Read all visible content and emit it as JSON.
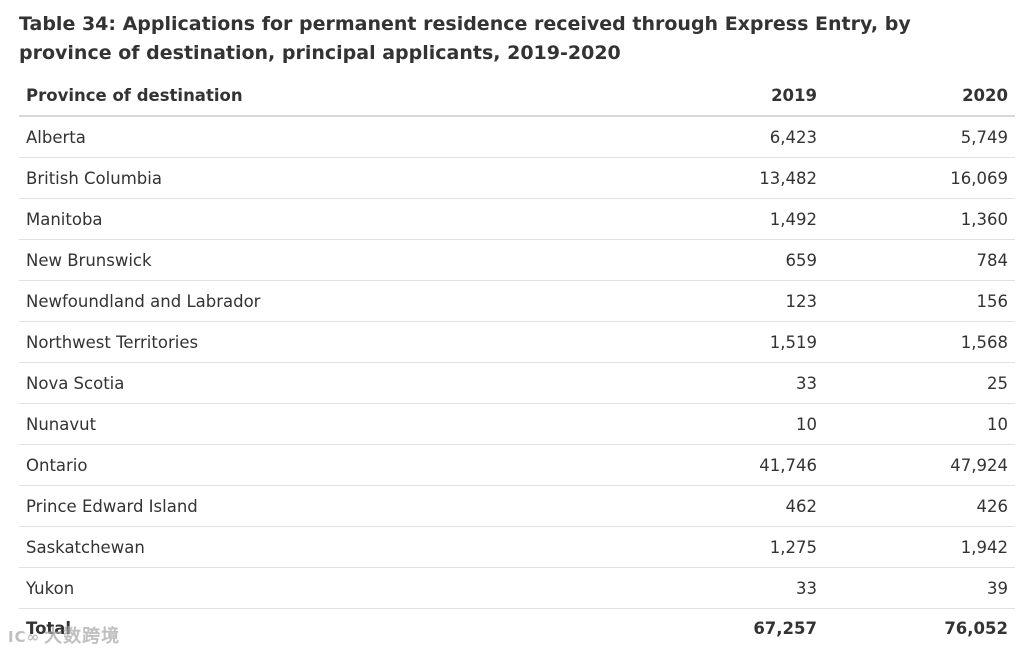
{
  "title": "Table 34: Applications for permanent residence received through Express Entry, by province of destination, principal applicants, 2019-2020",
  "headers": [
    "Province of destination",
    "2019",
    "2020"
  ],
  "rows": [
    [
      "Alberta",
      "6,423",
      "5,749"
    ],
    [
      "British Columbia",
      "13,482",
      "16,069"
    ],
    [
      "Manitoba",
      "1,492",
      "1,360"
    ],
    [
      "New Brunswick",
      "659",
      "784"
    ],
    [
      "Newfoundland and Labrador",
      "123",
      "156"
    ],
    [
      "Northwest Territories",
      "1,519",
      "1,568"
    ],
    [
      "Nova Scotia",
      "33",
      "25"
    ],
    [
      "Nunavut",
      "10",
      "10"
    ],
    [
      "Ontario",
      "41,746",
      "47,924"
    ],
    [
      "Prince Edward Island",
      "462",
      "426"
    ],
    [
      "Saskatchewan",
      "1,275",
      "1,942"
    ],
    [
      "Yukon",
      "33",
      "39"
    ],
    [
      "Total",
      "67,257",
      "76,052"
    ]
  ],
  "watermark": {
    "logo": "IC∞",
    "text": "大数跨境"
  }
}
